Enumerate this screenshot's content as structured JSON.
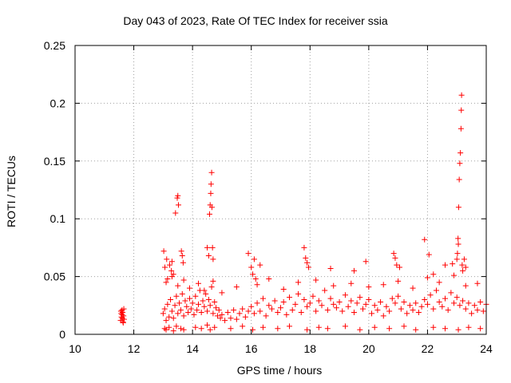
{
  "chart_data": {
    "type": "scatter",
    "title": "Day 043 of 2023, Rate Of TEC Index for receiver ssia",
    "xlabel": "GPS time / hours",
    "ylabel": "ROTI / TECUs",
    "xlim": [
      10,
      24
    ],
    "ylim": [
      0,
      0.25
    ],
    "x_ticks": [
      10,
      12,
      14,
      16,
      18,
      20,
      22,
      24
    ],
    "x_tick_labels": [
      "10",
      "12",
      "14",
      "16",
      "18",
      "20",
      "22",
      "24"
    ],
    "y_ticks": [
      0,
      0.05,
      0.1,
      0.15,
      0.2,
      0.25
    ],
    "y_tick_labels": [
      "0",
      "0.05",
      "0.1",
      "0.15",
      "0.2",
      "0.25"
    ],
    "grid": true,
    "marker": "plus",
    "color": "#ff0000",
    "series": [
      {
        "x": [
          11.55,
          11.57,
          11.58,
          11.6,
          11.61,
          11.62,
          11.63,
          11.65,
          11.66,
          11.67,
          11.56,
          11.6,
          11.64,
          13.0,
          13.05,
          13.1,
          13.15,
          13.2,
          13.25,
          13.3,
          13.35,
          13.4,
          13.45,
          13.5,
          13.55,
          13.6,
          13.65,
          13.7,
          13.75,
          13.8,
          13.85,
          13.9,
          13.95,
          14.0,
          14.05,
          14.1,
          14.15,
          14.2,
          14.25,
          14.3,
          14.35,
          14.4,
          14.45,
          14.5,
          14.55,
          14.6,
          14.65,
          14.7,
          14.75,
          14.8,
          14.85,
          14.9,
          14.95,
          15.0,
          15.1,
          15.2,
          15.3,
          15.4,
          15.5,
          15.6,
          15.7,
          15.8,
          15.9,
          16.0,
          16.1,
          16.2,
          16.3,
          16.4,
          16.5,
          16.6,
          16.7,
          16.8,
          16.9,
          17.0,
          17.1,
          17.2,
          17.3,
          17.4,
          17.5,
          17.6,
          17.7,
          17.8,
          17.9,
          18.0,
          18.1,
          18.2,
          18.3,
          18.4,
          18.5,
          18.6,
          18.7,
          18.8,
          18.9,
          19.0,
          19.1,
          19.2,
          19.3,
          19.4,
          19.5,
          19.6,
          19.7,
          19.8,
          19.9,
          20.0,
          20.1,
          20.2,
          20.3,
          20.4,
          20.5,
          20.6,
          20.7,
          20.8,
          20.9,
          21.0,
          21.1,
          21.2,
          21.3,
          21.4,
          21.5,
          21.6,
          21.7,
          21.8,
          21.9,
          22.0,
          22.1,
          22.2,
          22.3,
          22.4,
          22.5,
          22.6,
          22.7,
          22.8,
          22.9,
          23.0,
          23.1,
          23.2,
          23.3,
          23.4,
          23.5,
          23.6,
          23.7,
          23.8,
          23.9,
          24.0,
          13.05,
          13.1,
          13.2,
          13.35,
          13.45,
          13.6,
          13.7,
          14.1,
          14.3,
          14.5,
          14.6,
          14.75,
          15.3,
          15.7,
          16.05,
          16.4,
          16.9,
          17.3,
          17.9,
          18.3,
          18.6,
          19.2,
          19.7,
          20.2,
          20.7,
          21.2,
          21.6,
          22.2,
          22.6,
          23.05,
          23.4,
          23.8,
          13.1,
          13.3,
          13.5,
          13.7,
          13.9,
          14.2,
          14.4,
          14.7,
          15.0,
          15.5,
          16.2,
          16.6,
          17.1,
          17.6,
          18.2,
          18.8,
          19.4,
          20.0,
          20.5,
          21.0,
          21.5,
          22.0,
          22.4,
          22.9,
          23.3,
          23.7,
          13.02,
          13.06,
          13.12,
          13.15,
          13.22,
          13.28,
          13.3,
          13.35,
          13.42,
          13.48,
          13.5,
          13.52,
          13.62,
          13.65,
          13.68,
          14.5,
          14.55,
          14.58,
          14.6,
          14.62,
          14.63,
          14.65,
          14.66,
          14.68,
          14.7,
          15.9,
          16.0,
          16.05,
          16.1,
          16.15,
          16.3,
          17.8,
          17.85,
          17.9,
          17.95,
          18.7,
          19.5,
          19.9,
          20.85,
          20.9,
          20.95,
          21.05,
          21.9,
          22.05,
          22.2,
          22.6,
          22.85,
          23.0,
          23.02,
          23.04,
          23.05,
          23.06,
          23.08,
          23.1,
          23.12,
          23.14,
          23.15,
          23.16,
          23.18,
          23.2,
          23.25,
          23.3
        ],
        "y": [
          0.012,
          0.018,
          0.015,
          0.021,
          0.014,
          0.019,
          0.011,
          0.016,
          0.022,
          0.013,
          0.02,
          0.017,
          0.01,
          0.018,
          0.022,
          0.012,
          0.026,
          0.015,
          0.03,
          0.02,
          0.014,
          0.025,
          0.033,
          0.018,
          0.027,
          0.021,
          0.035,
          0.016,
          0.029,
          0.024,
          0.019,
          0.031,
          0.022,
          0.027,
          0.017,
          0.033,
          0.021,
          0.026,
          0.038,
          0.019,
          0.029,
          0.024,
          0.035,
          0.02,
          0.03,
          0.025,
          0.041,
          0.018,
          0.028,
          0.023,
          0.016,
          0.021,
          0.014,
          0.017,
          0.012,
          0.019,
          0.014,
          0.021,
          0.013,
          0.018,
          0.022,
          0.015,
          0.02,
          0.024,
          0.018,
          0.027,
          0.02,
          0.031,
          0.016,
          0.025,
          0.022,
          0.029,
          0.019,
          0.023,
          0.028,
          0.017,
          0.032,
          0.021,
          0.026,
          0.035,
          0.019,
          0.03,
          0.024,
          0.027,
          0.033,
          0.02,
          0.029,
          0.025,
          0.038,
          0.021,
          0.031,
          0.026,
          0.023,
          0.028,
          0.02,
          0.034,
          0.024,
          0.029,
          0.019,
          0.027,
          0.032,
          0.022,
          0.026,
          0.03,
          0.018,
          0.025,
          0.021,
          0.028,
          0.016,
          0.024,
          0.02,
          0.031,
          0.027,
          0.033,
          0.022,
          0.028,
          0.018,
          0.025,
          0.021,
          0.027,
          0.019,
          0.024,
          0.03,
          0.026,
          0.034,
          0.022,
          0.038,
          0.028,
          0.024,
          0.031,
          0.021,
          0.036,
          0.027,
          0.032,
          0.025,
          0.029,
          0.022,
          0.027,
          0.018,
          0.025,
          0.021,
          0.028,
          0.02,
          0.026,
          0.005,
          0.004,
          0.006,
          0.003,
          0.007,
          0.005,
          0.004,
          0.006,
          0.005,
          0.008,
          0.004,
          0.006,
          0.005,
          0.007,
          0.004,
          0.006,
          0.005,
          0.007,
          0.004,
          0.006,
          0.005,
          0.007,
          0.004,
          0.006,
          0.005,
          0.007,
          0.004,
          0.006,
          0.005,
          0.004,
          0.006,
          0.005,
          0.045,
          0.05,
          0.042,
          0.047,
          0.04,
          0.044,
          0.038,
          0.046,
          0.036,
          0.041,
          0.043,
          0.048,
          0.039,
          0.045,
          0.047,
          0.042,
          0.044,
          0.041,
          0.043,
          0.046,
          0.04,
          0.049,
          0.045,
          0.051,
          0.042,
          0.044,
          0.072,
          0.058,
          0.065,
          0.048,
          0.06,
          0.055,
          0.063,
          0.052,
          0.105,
          0.118,
          0.12,
          0.112,
          0.072,
          0.068,
          0.062,
          0.075,
          0.068,
          0.104,
          0.112,
          0.122,
          0.13,
          0.14,
          0.11,
          0.075,
          0.065,
          0.07,
          0.058,
          0.052,
          0.065,
          0.048,
          0.06,
          0.075,
          0.066,
          0.062,
          0.058,
          0.057,
          0.055,
          0.063,
          0.07,
          0.066,
          0.06,
          0.058,
          0.082,
          0.069,
          0.052,
          0.06,
          0.061,
          0.065,
          0.07,
          0.083,
          0.078,
          0.11,
          0.134,
          0.148,
          0.157,
          0.178,
          0.194,
          0.207,
          0.06,
          0.055,
          0.065,
          0.058
        ]
      }
    ]
  }
}
